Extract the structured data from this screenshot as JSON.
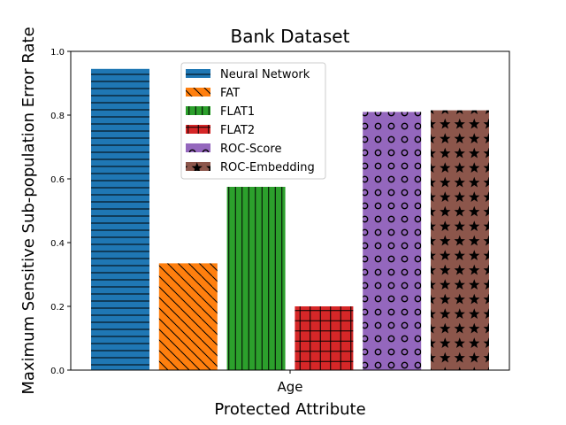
{
  "chart_data": {
    "type": "bar",
    "title": "Bank Dataset",
    "xlabel": "Protected Attribute",
    "ylabel": "Maximum Sensitive Sub-population Error Rate",
    "categories": [
      "Age"
    ],
    "ylim": [
      0,
      1.0
    ],
    "yticks": [
      "0.0",
      "0.2",
      "0.4",
      "0.6",
      "0.8",
      "1.0"
    ],
    "legend_position": "top-center",
    "grid": false,
    "series": [
      {
        "name": "Neural Network",
        "values": [
          0.945
        ],
        "color": "#1f77b4",
        "hatch": "horizontal-lines"
      },
      {
        "name": "FAT",
        "values": [
          0.335
        ],
        "color": "#ff7f0e",
        "hatch": "diagonal-lines"
      },
      {
        "name": "FLAT1",
        "values": [
          0.575
        ],
        "color": "#2ca02c",
        "hatch": "vertical-lines"
      },
      {
        "name": "FLAT2",
        "values": [
          0.2
        ],
        "color": "#d62728",
        "hatch": "grid"
      },
      {
        "name": "ROC-Score",
        "values": [
          0.81
        ],
        "color": "#9467bd",
        "hatch": "circles"
      },
      {
        "name": "ROC-Embedding",
        "values": [
          0.815
        ],
        "color": "#8c564b",
        "hatch": "stars"
      }
    ]
  }
}
